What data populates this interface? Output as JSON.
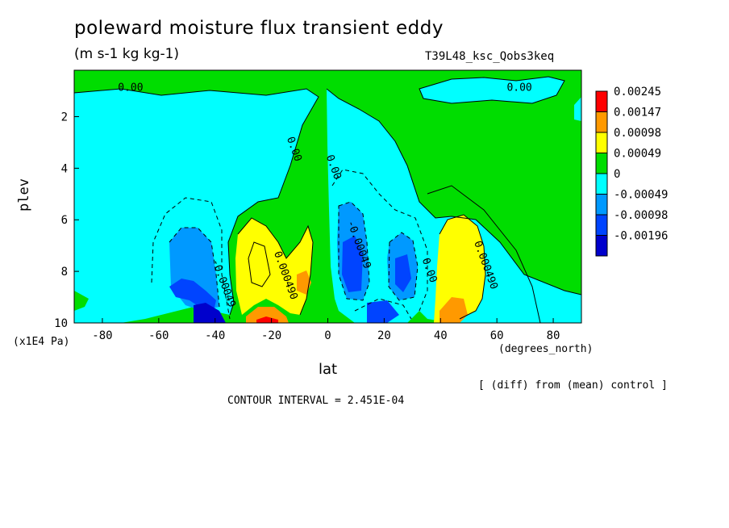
{
  "chart": {
    "title": "poleward moisture flux transient eddy",
    "units": "(m s-1 kg kg-1)",
    "run_id": "T39L48_ksc_Qobs3keq",
    "xlabel": "lat",
    "ylabel": "plev",
    "x_units": "(degrees_north)",
    "y_units": "(x1E4 Pa)",
    "note": "[ (diff) from (mean) control ]",
    "contour_interval": "CONTOUR INTERVAL = 2.451E-04"
  },
  "chart_data": {
    "type": "heatmap",
    "title": "poleward moisture flux transient eddy",
    "xlabel": "lat",
    "ylabel": "plev",
    "xlim": [
      -90,
      90
    ],
    "ylim": [
      10,
      0.2
    ],
    "x_ticks": [
      -80,
      -60,
      -40,
      -20,
      0,
      20,
      40,
      60,
      80
    ],
    "y_ticks": [
      2,
      4,
      6,
      8,
      10
    ],
    "legend": {
      "placement": "right",
      "levels": [
        "0.00245",
        "0.00147",
        "0.00098",
        "0.00049",
        "0",
        "-0.00049",
        "-0.00098",
        "-0.00196"
      ],
      "colors": [
        "#ff0000",
        "#ff9900",
        "#ffff00",
        "#00dd00",
        "#00ffff",
        "#0099ff",
        "#0044ff",
        "#0000cc"
      ]
    },
    "contour_labels": [
      {
        "text": "0.00",
        "lat": -70,
        "plev": 1.0
      },
      {
        "text": "0.00",
        "lat": 68,
        "plev": 1.0
      },
      {
        "text": "0.00",
        "lat": -13,
        "plev": 3.3
      },
      {
        "text": "0.00",
        "lat": 1,
        "plev": 4.0
      },
      {
        "text": "-0.00049",
        "lat": 10,
        "plev": 7.0
      },
      {
        "text": "-0.00049",
        "lat": -38,
        "plev": 8.5
      },
      {
        "text": "0.000490",
        "lat": -16,
        "plev": 8.2
      },
      {
        "text": "0.00",
        "lat": 35,
        "plev": 8.0
      },
      {
        "text": "0.000490",
        "lat": 55,
        "plev": 7.8
      }
    ],
    "blobs": [
      {
        "value": -0.00049,
        "lat": -45,
        "plev": 7.5,
        "rlat": 12,
        "rplev": 2.5
      },
      {
        "value": -0.00098,
        "lat": -43,
        "plev": 8.3,
        "rlat": 7,
        "rplev": 1.8
      },
      {
        "value": -0.00196,
        "lat": -42,
        "plev": 9.6,
        "rlat": 5,
        "rplev": 0.5
      },
      {
        "value": 0.00049,
        "lat": -18,
        "plev": 7.3,
        "rlat": 11,
        "rplev": 2.4
      },
      {
        "value": 0.00098,
        "lat": -9,
        "plev": 8.4,
        "rlat": 2.3,
        "rplev": 0.6
      },
      {
        "value": 0.00098,
        "lat": -20,
        "plev": 9.7,
        "rlat": 6,
        "rplev": 0.35
      },
      {
        "value": 0.00147,
        "lat": -20,
        "plev": 9.85,
        "rlat": 3,
        "rplev": 0.2
      },
      {
        "value": -0.00049,
        "lat": 14,
        "plev": 7.7,
        "rlat": 14,
        "rplev": 2.6
      },
      {
        "value": -0.00098,
        "lat": 9,
        "plev": 7.6,
        "rlat": 4,
        "rplev": 2.0
      },
      {
        "value": -0.00098,
        "lat": 24,
        "plev": 7.9,
        "rlat": 4,
        "rplev": 1.5
      },
      {
        "value": 0.00049,
        "lat": 46,
        "plev": 8.2,
        "rlat": 8,
        "rplev": 2.3
      },
      {
        "value": 0.00098,
        "lat": 44,
        "plev": 9.5,
        "rlat": 3.5,
        "rplev": 0.5
      }
    ]
  }
}
